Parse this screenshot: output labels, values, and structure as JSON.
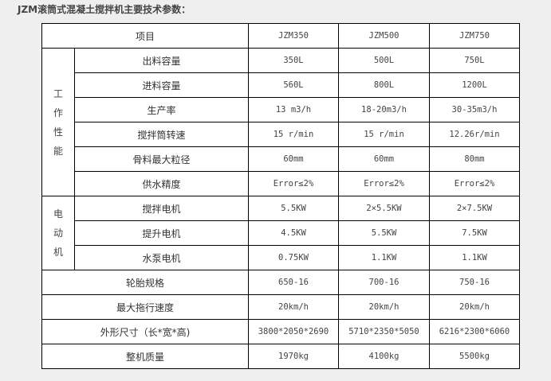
{
  "title": "JZM滚筒式混凝土搅拌机主要技术参数：",
  "table": {
    "header": {
      "item": "项目",
      "models": [
        "JZM350",
        "JZM500",
        "JZM750"
      ]
    },
    "groups": [
      {
        "label": "工作性能",
        "rows": [
          {
            "name": "出料容量",
            "values": [
              "350L",
              "500L",
              "750L"
            ]
          },
          {
            "name": "进料容量",
            "values": [
              "560L",
              "800L",
              "1200L"
            ]
          },
          {
            "name": "生产率",
            "values": [
              "13 m3/h",
              "18-20m3/h",
              "30-35m3/h"
            ]
          },
          {
            "name": "搅拌筒转速",
            "values": [
              "15 r/min",
              "15 r/min",
              "12.26r/min"
            ]
          },
          {
            "name": "骨料最大粒径",
            "values": [
              "60mm",
              "60mm",
              "80mm"
            ]
          },
          {
            "name": "供水精度",
            "values": [
              "Error≤2%",
              "Error≤2%",
              "Error≤2%"
            ]
          }
        ]
      },
      {
        "label": "电动机",
        "rows": [
          {
            "name": "搅拌电机",
            "values": [
              "5.5KW",
              "2×5.5KW",
              "2×7.5KW"
            ]
          },
          {
            "name": "提升电机",
            "values": [
              "4.5KW",
              "5.5KW",
              "7.5KW"
            ]
          },
          {
            "name": "水泵电机",
            "values": [
              "0.75KW",
              "1.1KW",
              "1.1KW"
            ]
          }
        ]
      }
    ],
    "rows": [
      {
        "name": "轮胎规格",
        "values": [
          "650-16",
          "700-16",
          "750-16"
        ]
      },
      {
        "name": "最大拖行速度",
        "values": [
          "20km/h",
          "20km/h",
          "20km/h"
        ]
      },
      {
        "name": "外形尺寸（长*宽*高)",
        "values": [
          "3800*2050*2690",
          "5710*2350*5050",
          "6216*2300*6060"
        ]
      },
      {
        "name": "整机质量",
        "values": [
          "1970kg",
          "4100kg",
          "5500kg"
        ]
      }
    ]
  }
}
